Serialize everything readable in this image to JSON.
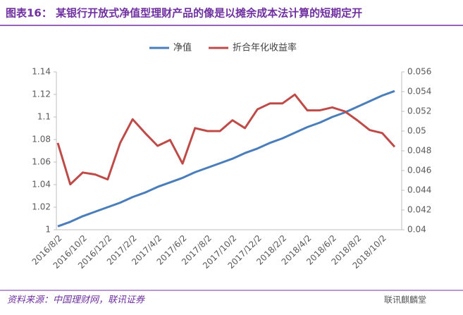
{
  "chart_data": {
    "type": "line",
    "title": "图表16： 某银行开放式净值型理财产品的像是以摊余成本法计算的短期定开",
    "source": "资料来源：中国理财网，联讯证券",
    "watermark": "联讯麒麟堂",
    "categories": [
      "2016/8/2",
      null,
      "2016/10/2",
      null,
      "2016/12/2",
      null,
      "2017/2/2",
      null,
      "2017/4/2",
      null,
      "2017/6/2",
      null,
      "2017/8/2",
      null,
      "2017/10/2",
      null,
      "2017/12/2",
      null,
      "2018/2/2",
      null,
      "2018/4/2",
      null,
      "2018/6/2",
      null,
      "2018/8/2",
      null,
      "2018/10/2",
      null
    ],
    "series": [
      {
        "name": "净值",
        "color": "#4a7ebb",
        "values": [
          1.003,
          1.007,
          1.012,
          1.016,
          1.02,
          1.024,
          1.029,
          1.033,
          1.038,
          1.042,
          1.046,
          1.051,
          1.055,
          1.059,
          1.063,
          1.068,
          1.072,
          1.077,
          1.081,
          1.086,
          1.091,
          1.095,
          1.1,
          1.104,
          1.109,
          1.114,
          1.119,
          1.123
        ]
      },
      {
        "name": "折合年化收益率",
        "color": "#be4b48",
        "axis": "y2",
        "values": [
          0.0488,
          0.0446,
          0.0458,
          0.0456,
          0.0451,
          0.0488,
          0.0512,
          0.0498,
          0.0485,
          0.0491,
          0.0467,
          0.0503,
          0.05,
          0.05,
          0.0511,
          0.0503,
          0.0522,
          0.0528,
          0.0528,
          0.0537,
          0.0521,
          0.0521,
          0.0524,
          0.052,
          0.0511,
          0.0501,
          0.0498,
          0.0484
        ]
      }
    ],
    "ylim": [
      1,
      1.14
    ],
    "yticks": [
      1,
      1.02,
      1.04,
      1.06,
      1.08,
      1.1,
      1.12,
      1.14
    ],
    "y2lim": [
      0.04,
      0.056
    ],
    "y2ticks": [
      0.04,
      0.042,
      0.044,
      0.046,
      0.048,
      0.05,
      0.052,
      0.054,
      0.056
    ],
    "legend": "top",
    "grid": false
  }
}
